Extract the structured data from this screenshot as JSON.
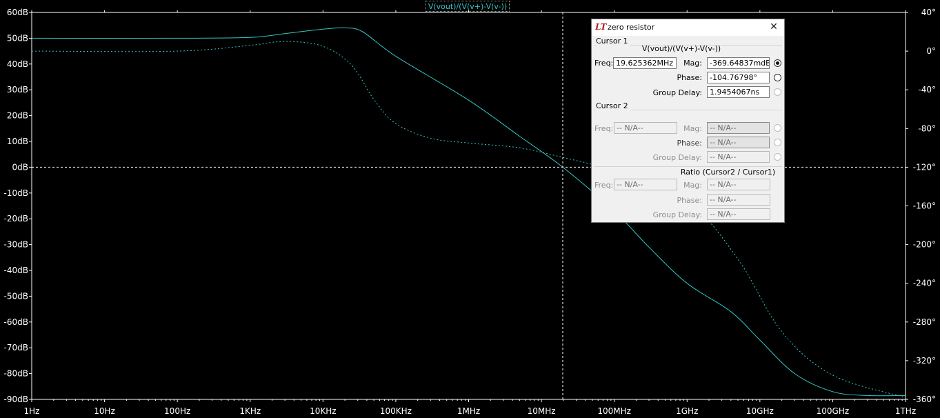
{
  "window": {
    "trace_title": "V(vout)/(V(v+)-V(v-))"
  },
  "colors": {
    "background": "#000000",
    "axis": "#ffffff",
    "trace": "#33c6c6",
    "cursor": "#ffffff",
    "dialog_bg": "#f0f0f0"
  },
  "chart_data": {
    "type": "line",
    "title": "V(vout)/(V(v+)-V(v-))",
    "xscale": "log",
    "xlim": [
      1,
      1000000000000.0
    ],
    "x_ticks": [
      {
        "value": 1,
        "label": "1Hz"
      },
      {
        "value": 10,
        "label": "10Hz"
      },
      {
        "value": 100,
        "label": "100Hz"
      },
      {
        "value": 1000,
        "label": "1KHz"
      },
      {
        "value": 10000,
        "label": "10KHz"
      },
      {
        "value": 100000,
        "label": "100KHz"
      },
      {
        "value": 1000000,
        "label": "1MHz"
      },
      {
        "value": 10000000,
        "label": "10MHz"
      },
      {
        "value": 100000000,
        "label": "100MHz"
      },
      {
        "value": 1000000000,
        "label": "1GHz"
      },
      {
        "value": 10000000000,
        "label": "10GHz"
      },
      {
        "value": 100000000000,
        "label": "100GHz"
      },
      {
        "value": 1000000000000,
        "label": "1THz"
      }
    ],
    "ylim_left": [
      -90,
      60
    ],
    "y_left_ticks": [
      {
        "value": 60,
        "label": "60dB"
      },
      {
        "value": 50,
        "label": "50dB"
      },
      {
        "value": 40,
        "label": "40dB"
      },
      {
        "value": 30,
        "label": "30dB"
      },
      {
        "value": 20,
        "label": "20dB"
      },
      {
        "value": 10,
        "label": "10dB"
      },
      {
        "value": 0,
        "label": "0dB"
      },
      {
        "value": -10,
        "label": "-10dB"
      },
      {
        "value": -20,
        "label": "-20dB"
      },
      {
        "value": -30,
        "label": "-30dB"
      },
      {
        "value": -40,
        "label": "-40dB"
      },
      {
        "value": -50,
        "label": "-50dB"
      },
      {
        "value": -60,
        "label": "-60dB"
      },
      {
        "value": -70,
        "label": "-70dB"
      },
      {
        "value": -80,
        "label": "-80dB"
      },
      {
        "value": -90,
        "label": "-90dB"
      }
    ],
    "ylim_right": [
      -360,
      40
    ],
    "y_right_ticks": [
      {
        "value": 40,
        "label": "40°"
      },
      {
        "value": 0,
        "label": "0°"
      },
      {
        "value": -40,
        "label": "-40°"
      },
      {
        "value": -80,
        "label": "-80°"
      },
      {
        "value": -120,
        "label": "-120°"
      },
      {
        "value": -160,
        "label": "-160°"
      },
      {
        "value": -200,
        "label": "-200°"
      },
      {
        "value": -240,
        "label": "-240°"
      },
      {
        "value": -280,
        "label": "-280°"
      },
      {
        "value": -320,
        "label": "-320°"
      },
      {
        "value": -360,
        "label": "-360°"
      }
    ],
    "series": [
      {
        "name": "magnitude",
        "axis": "left",
        "style": "solid",
        "points": [
          [
            1,
            50
          ],
          [
            100,
            50
          ],
          [
            1000,
            50.3
          ],
          [
            3000,
            51.8
          ],
          [
            10000,
            53.5
          ],
          [
            20000,
            54
          ],
          [
            35000,
            52.5
          ],
          [
            100000,
            43
          ],
          [
            1000000,
            26
          ],
          [
            5000000,
            12
          ],
          [
            19625362,
            0
          ],
          [
            100000000,
            -17
          ],
          [
            300000000,
            -31
          ],
          [
            1000000000,
            -45
          ],
          [
            4000000000,
            -56
          ],
          [
            10000000000,
            -67
          ],
          [
            30000000000,
            -80
          ],
          [
            100000000000,
            -87
          ],
          [
            300000000000,
            -88.5
          ],
          [
            1000000000000,
            -88.5
          ]
        ]
      },
      {
        "name": "phase",
        "axis": "right",
        "style": "dashed",
        "points": [
          [
            1,
            0
          ],
          [
            100,
            0
          ],
          [
            1000,
            6
          ],
          [
            3000,
            10
          ],
          [
            10000,
            5
          ],
          [
            25000,
            -15
          ],
          [
            50000,
            -50
          ],
          [
            100000,
            -75
          ],
          [
            300000,
            -90
          ],
          [
            1000000,
            -95
          ],
          [
            5000000,
            -100
          ],
          [
            20000000,
            -110
          ],
          [
            100000000,
            -124
          ],
          [
            1000000000,
            -155
          ],
          [
            5000000000,
            -215
          ],
          [
            20000000000,
            -290
          ],
          [
            100000000000,
            -335
          ],
          [
            1000000000000,
            -358
          ]
        ]
      }
    ],
    "cursor": {
      "freq": 19625362,
      "mag": 0
    }
  },
  "dialog": {
    "title": "zero resistor",
    "close_icon": "close-icon",
    "cursor1": {
      "label": "Cursor 1",
      "trace": "V(vout)/(V(v+)-V(v-))",
      "freq_label": "Freq:",
      "freq": "19.625362MHz",
      "mag_label": "Mag:",
      "mag": "-369.64837mdB",
      "phase_label": "Phase:",
      "phase": "-104.76798°",
      "gd_label": "Group Delay:",
      "gd": "1.9454067ns"
    },
    "cursor2": {
      "label": "Cursor 2",
      "freq_label": "Freq:",
      "freq": "-- N/A--",
      "mag_label": "Mag:",
      "mag": "-- N/A--",
      "phase_label": "Phase:",
      "phase": "-- N/A--",
      "gd_label": "Group Delay:",
      "gd": "-- N/A--"
    },
    "ratio": {
      "label": "Ratio (Cursor2 / Cursor1)",
      "freq_label": "Freq:",
      "freq": "-- N/A--",
      "mag_label": "Mag:",
      "mag": "-- N/A--",
      "phase_label": "Phase:",
      "phase": "-- N/A--",
      "gd_label": "Group Delay:",
      "gd": "-- N/A--"
    }
  }
}
